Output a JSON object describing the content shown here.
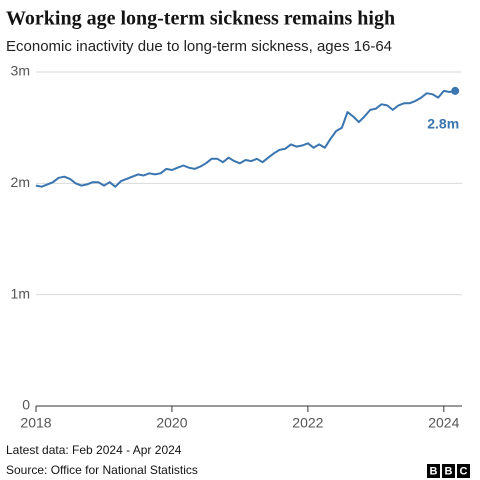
{
  "chart_data": {
    "type": "line",
    "title": "Working age long-term sickness remains high",
    "subtitle": "Economic inactivity due to long-term sickness, ages 16-64",
    "note": "Latest data: Feb 2024 - Apr 2024",
    "source": "Source: Office for National Statistics",
    "logo": [
      "B",
      "B",
      "C"
    ],
    "color": "#3a75b0",
    "x": [
      2018,
      2018.083,
      2018.167,
      2018.25,
      2018.333,
      2018.417,
      2018.5,
      2018.583,
      2018.667,
      2018.75,
      2018.833,
      2018.917,
      2019,
      2019.083,
      2019.167,
      2019.25,
      2019.333,
      2019.417,
      2019.5,
      2019.583,
      2019.667,
      2019.75,
      2019.833,
      2019.917,
      2020,
      2020.083,
      2020.167,
      2020.25,
      2020.333,
      2020.417,
      2020.5,
      2020.583,
      2020.667,
      2020.75,
      2020.833,
      2020.917,
      2021,
      2021.083,
      2021.167,
      2021.25,
      2021.333,
      2021.417,
      2021.5,
      2021.583,
      2021.667,
      2021.75,
      2021.833,
      2021.917,
      2022,
      2022.083,
      2022.167,
      2022.25,
      2022.333,
      2022.417,
      2022.5,
      2022.583,
      2022.667,
      2022.75,
      2022.833,
      2022.917,
      2023,
      2023.083,
      2023.167,
      2023.25,
      2023.333,
      2023.417,
      2023.5,
      2023.583,
      2023.667,
      2023.75,
      2023.833,
      2023.917,
      2024,
      2024.083,
      2024.167
    ],
    "values": [
      1.98,
      1.97,
      1.99,
      2.01,
      2.05,
      2.06,
      2.04,
      2.0,
      1.98,
      1.99,
      2.01,
      2.01,
      1.98,
      2.01,
      1.97,
      2.02,
      2.04,
      2.06,
      2.08,
      2.07,
      2.09,
      2.08,
      2.09,
      2.13,
      2.12,
      2.14,
      2.16,
      2.14,
      2.13,
      2.15,
      2.18,
      2.22,
      2.22,
      2.19,
      2.23,
      2.2,
      2.18,
      2.21,
      2.2,
      2.22,
      2.19,
      2.23,
      2.27,
      2.3,
      2.31,
      2.35,
      2.33,
      2.34,
      2.36,
      2.32,
      2.35,
      2.32,
      2.4,
      2.47,
      2.5,
      2.64,
      2.6,
      2.55,
      2.6,
      2.66,
      2.67,
      2.71,
      2.7,
      2.66,
      2.7,
      2.72,
      2.72,
      2.74,
      2.77,
      2.81,
      2.8,
      2.77,
      2.83,
      2.82,
      2.83
    ],
    "value_labels": [
      null,
      null,
      null,
      null,
      null,
      null,
      null,
      null,
      null,
      null,
      null,
      null,
      null,
      null,
      null,
      null,
      null,
      null,
      null,
      null,
      null,
      null,
      null,
      null,
      null,
      null,
      null,
      null,
      null,
      null,
      null,
      null,
      null,
      null,
      null,
      null,
      null,
      null,
      null,
      null,
      null,
      null,
      null,
      null,
      null,
      null,
      null,
      null,
      null,
      null,
      null,
      null,
      null,
      null,
      null,
      null,
      null,
      null,
      null,
      null,
      null,
      null,
      null,
      null,
      null,
      null,
      null,
      null,
      null,
      null,
      null,
      null,
      null,
      null,
      "2.8m"
    ],
    "xlim": [
      2018,
      2024.4
    ],
    "xticks": [
      2018,
      2020,
      2022,
      2024
    ],
    "ylim": [
      0,
      3
    ],
    "yticks": [
      0,
      {
        "value": 1,
        "label": "1m"
      },
      {
        "value": 2,
        "label": "2m"
      },
      {
        "value": 3,
        "label": "3m"
      }
    ],
    "grid": true
  }
}
